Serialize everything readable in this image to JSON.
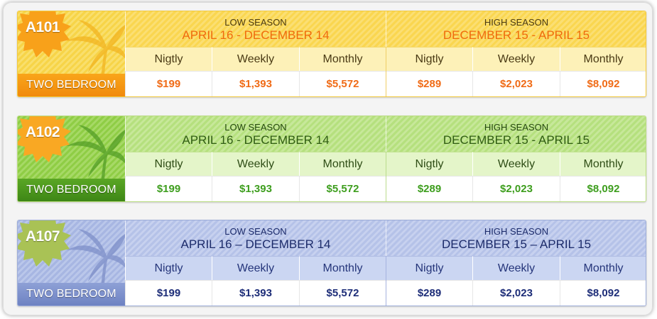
{
  "units": [
    {
      "code": "A101",
      "type": "TWO BEDROOM",
      "theme": "orange",
      "seasons": [
        {
          "label": "LOW SEASON",
          "dates": "APRIL 16 - DECEMBER 14"
        },
        {
          "label": "HIGH SEASON",
          "dates": "DECEMBER 15 - APRIL 15"
        }
      ],
      "periods": [
        "Nigtly",
        "Weekly",
        "Monthly",
        "Nigtly",
        "Weekly",
        "Monthly"
      ],
      "prices": [
        "$199",
        "$1,393",
        "$5,572",
        "$289",
        "$2,023",
        "$8,092"
      ]
    },
    {
      "code": "A102",
      "type": "TWO BEDROOM",
      "theme": "green",
      "seasons": [
        {
          "label": "LOW SEASON",
          "dates": "APRIL 16 - DECEMBER 14"
        },
        {
          "label": "HIGH SEASON",
          "dates": "DECEMBER 15 - APRIL 15"
        }
      ],
      "periods": [
        "Nigtly",
        "Weekly",
        "Monthly",
        "Nigtly",
        "Weekly",
        "Monthly"
      ],
      "prices": [
        "$199",
        "$1,393",
        "$5,572",
        "$289",
        "$2,023",
        "$8,092"
      ]
    },
    {
      "code": "A107",
      "type": "TWO BEDROOM",
      "theme": "blue",
      "seasons": [
        {
          "label": "LOW SEASON",
          "dates": "APRIL 16 – DECEMBER 14"
        },
        {
          "label": "HIGH SEASON",
          "dates": "DECEMBER 15 – APRIL 15"
        }
      ],
      "periods": [
        "Nigtly",
        "Weekly",
        "Monthly",
        "Nigtly",
        "Weekly",
        "Monthly"
      ],
      "prices": [
        "$199",
        "$1,393",
        "$5,572",
        "$289",
        "$2,023",
        "$8,092"
      ]
    }
  ],
  "colors": {
    "orange_badge": "#f8a11a",
    "green_badge": "#f9a823",
    "blue_badge": "#a9c255",
    "orange_price": "#f06b16",
    "green_price": "#3e9e1e",
    "blue_price": "#1d2d78"
  },
  "icons": {
    "badge": "starburst-icon",
    "decoration": "palm-tree-icon"
  }
}
